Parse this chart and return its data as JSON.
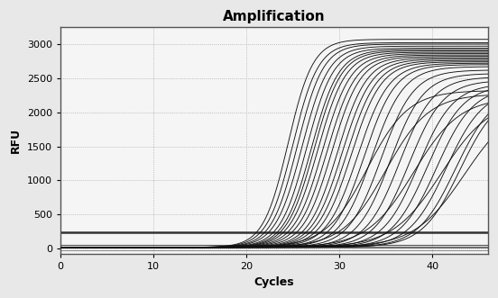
{
  "title": "Amplification",
  "xlabel": "Cycles",
  "ylabel": "RFU",
  "xlim": [
    0,
    46
  ],
  "ylim": [
    -80,
    3250
  ],
  "xticks": [
    0,
    10,
    20,
    30,
    40
  ],
  "yticks": [
    0,
    500,
    1000,
    1500,
    2000,
    2500,
    3000
  ],
  "background_color": "#e8e8e8",
  "plot_bg_color": "#f5f5f5",
  "grid_color": "#aaaaaa",
  "line_color": "#111111",
  "sigmoid_curves": [
    {
      "midpoint": 24.5,
      "top": 3050,
      "k": 0.75
    },
    {
      "midpoint": 25.0,
      "top": 3000,
      "k": 0.73
    },
    {
      "midpoint": 25.5,
      "top": 2980,
      "k": 0.72
    },
    {
      "midpoint": 26.0,
      "top": 2950,
      "k": 0.7
    },
    {
      "midpoint": 26.5,
      "top": 2920,
      "k": 0.7
    },
    {
      "midpoint": 27.0,
      "top": 2900,
      "k": 0.68
    },
    {
      "midpoint": 27.3,
      "top": 2880,
      "k": 0.68
    },
    {
      "midpoint": 27.7,
      "top": 2860,
      "k": 0.67
    },
    {
      "midpoint": 28.2,
      "top": 2840,
      "k": 0.66
    },
    {
      "midpoint": 28.7,
      "top": 2820,
      "k": 0.65
    },
    {
      "midpoint": 29.2,
      "top": 2800,
      "k": 0.65
    },
    {
      "midpoint": 29.8,
      "top": 2780,
      "k": 0.64
    },
    {
      "midpoint": 30.3,
      "top": 2760,
      "k": 0.63
    },
    {
      "midpoint": 30.8,
      "top": 2740,
      "k": 0.62
    },
    {
      "midpoint": 31.3,
      "top": 2720,
      "k": 0.62
    },
    {
      "midpoint": 32.0,
      "top": 2700,
      "k": 0.6
    },
    {
      "midpoint": 32.7,
      "top": 2680,
      "k": 0.6
    },
    {
      "midpoint": 33.5,
      "top": 2650,
      "k": 0.58
    },
    {
      "midpoint": 34.5,
      "top": 2600,
      "k": 0.57
    },
    {
      "midpoint": 35.5,
      "top": 2550,
      "k": 0.56
    },
    {
      "midpoint": 36.5,
      "top": 2500,
      "k": 0.55
    },
    {
      "midpoint": 37.5,
      "top": 2450,
      "k": 0.54
    },
    {
      "midpoint": 38.5,
      "top": 2400,
      "k": 0.53
    },
    {
      "midpoint": 39.5,
      "top": 2380,
      "k": 0.52
    },
    {
      "midpoint": 40.5,
      "top": 2350,
      "k": 0.51
    },
    {
      "midpoint": 41.5,
      "top": 2320,
      "k": 0.5
    },
    {
      "midpoint": 42.5,
      "top": 2300,
      "k": 0.49
    },
    {
      "midpoint": 43.0,
      "top": 2280,
      "k": 0.49
    },
    {
      "midpoint": 33.0,
      "top": 2300,
      "k": 0.45
    },
    {
      "midpoint": 35.0,
      "top": 2250,
      "k": 0.43
    },
    {
      "midpoint": 38.0,
      "top": 2200,
      "k": 0.4
    },
    {
      "midpoint": 41.0,
      "top": 2180,
      "k": 0.38
    },
    {
      "midpoint": 43.5,
      "top": 2150,
      "k": 0.37
    }
  ],
  "flat_lines": [
    {
      "y": 240,
      "linewidth": 1.8,
      "color": "#333333"
    },
    {
      "y": 60,
      "linewidth": 0.8,
      "color": "#555555"
    },
    {
      "y": 30,
      "linewidth": 0.8,
      "color": "#666666"
    },
    {
      "y": 10,
      "linewidth": 0.7,
      "color": "#777777"
    },
    {
      "y": -20,
      "linewidth": 0.7,
      "color": "#888888"
    }
  ],
  "title_fontsize": 11,
  "axis_label_fontsize": 9,
  "tick_fontsize": 8
}
